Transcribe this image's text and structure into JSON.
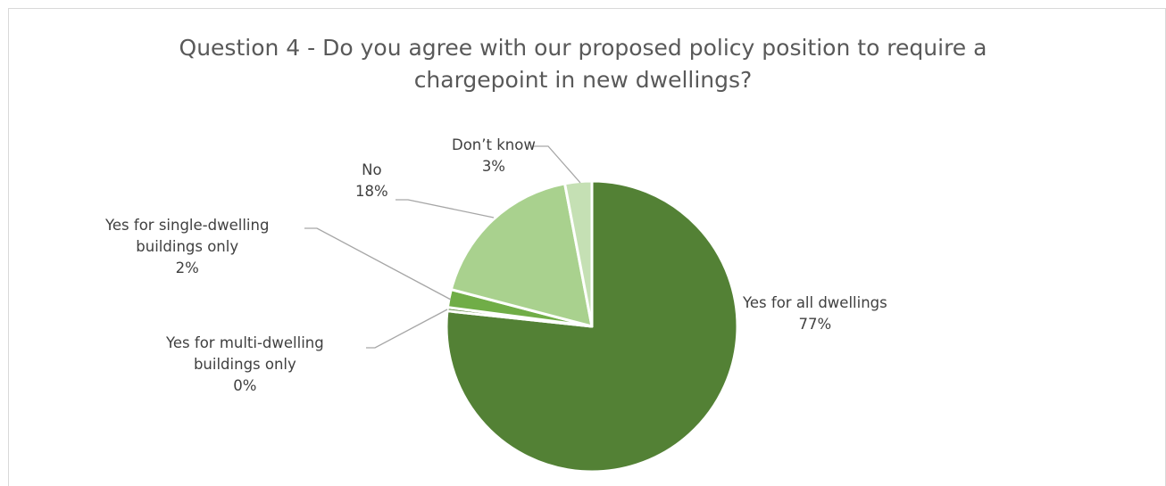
{
  "chart_data": {
    "type": "pie",
    "title_lines": [
      "Question 4 - Do you agree with our proposed policy position to require a",
      "chargepoint in new dwellings?"
    ],
    "slices": [
      {
        "label_lines": [
          "Yes for all dwellings"
        ],
        "value": 77,
        "value_label": "77%",
        "color": "#538135"
      },
      {
        "label_lines": [
          "Yes for multi-dwelling",
          "buildings only"
        ],
        "value": 0.4,
        "value_label": "0%",
        "color": "#548235"
      },
      {
        "label_lines": [
          "Yes for single-dwelling",
          "buildings only"
        ],
        "value": 2,
        "value_label": "2%",
        "color": "#70ad47"
      },
      {
        "label_lines": [
          "No"
        ],
        "value": 18,
        "value_label": "18%",
        "color": "#a9d18e"
      },
      {
        "label_lines": [
          "Don’t know"
        ],
        "value": 3,
        "value_label": "3%",
        "color": "#c5e0b4"
      }
    ],
    "start_angle_deg": 0,
    "direction": "clockwise",
    "legend": "none",
    "data_labels": "outside with leader lines"
  }
}
